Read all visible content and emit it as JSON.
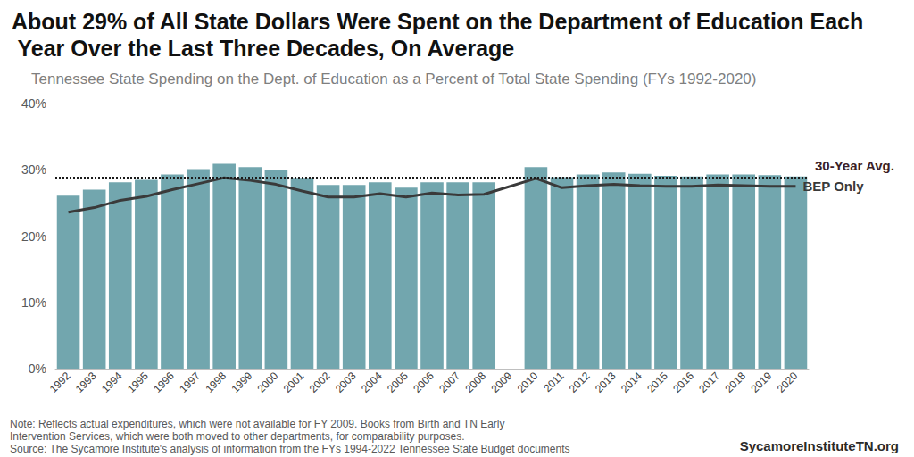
{
  "chart_data": {
    "type": "bar",
    "title": "About 29% of All State Dollars Were Spent on the Department of Education Each Year Over the Last Three Decades, On Average",
    "subtitle": "Tennessee State Spending on the Dept. of Education as a Percent of Total State Spending (FYs 1992-2020)",
    "notes": [
      "Note: Reflects actual expenditures, which were not available for FY 2009. Books from Birth and TN Early Intervention Services, which were both moved to other departments, for comparability purposes.",
      "Source: The Sycamore Institute's analysis of information from the FYs 1994-2022 Tennessee State Budget documents"
    ],
    "credit": "SycamoreInstituteTN.org",
    "categories": [
      "1992",
      "1993",
      "1994",
      "1995",
      "1996",
      "1997",
      "1998",
      "1999",
      "2000",
      "2001",
      "2002",
      "2003",
      "2004",
      "2005",
      "2006",
      "2007",
      "2008",
      "2009",
      "2010",
      "2011",
      "2012",
      "2013",
      "2014",
      "2015",
      "2016",
      "2017",
      "2018",
      "2019",
      "2020"
    ],
    "values": [
      26.1,
      27.0,
      28.1,
      28.5,
      29.3,
      30.1,
      30.9,
      30.4,
      29.9,
      28.8,
      27.7,
      27.7,
      28.1,
      27.3,
      28.1,
      28.1,
      28.1,
      null,
      30.4,
      28.9,
      29.3,
      29.6,
      29.4,
      29.1,
      29.0,
      29.3,
      29.3,
      29.2,
      29.0
    ],
    "color": "#72a6ae",
    "series": [
      {
        "name": "BEP Only",
        "type": "line",
        "color": "#3a3a3a",
        "line_style": "solid",
        "values": [
          23.6,
          24.3,
          25.4,
          26.0,
          27.0,
          27.9,
          28.8,
          28.4,
          27.8,
          26.8,
          25.9,
          25.9,
          26.4,
          25.9,
          26.5,
          26.2,
          26.3,
          null,
          28.7,
          27.3,
          27.6,
          27.8,
          27.6,
          27.5,
          27.5,
          27.7,
          27.6,
          27.5,
          27.5
        ]
      }
    ],
    "average": {
      "label": "30-Year Avg.",
      "value": 28.9,
      "line_style": "dotted",
      "color": "#3d1f28"
    },
    "ylim": [
      0,
      40
    ],
    "yticks": [
      {
        "value": 0,
        "label": "0%"
      },
      {
        "value": 10,
        "label": "10%"
      },
      {
        "value": 20,
        "label": "20%"
      },
      {
        "value": 30,
        "label": "30%"
      },
      {
        "value": 40,
        "label": "40%"
      }
    ],
    "grid": false
  }
}
